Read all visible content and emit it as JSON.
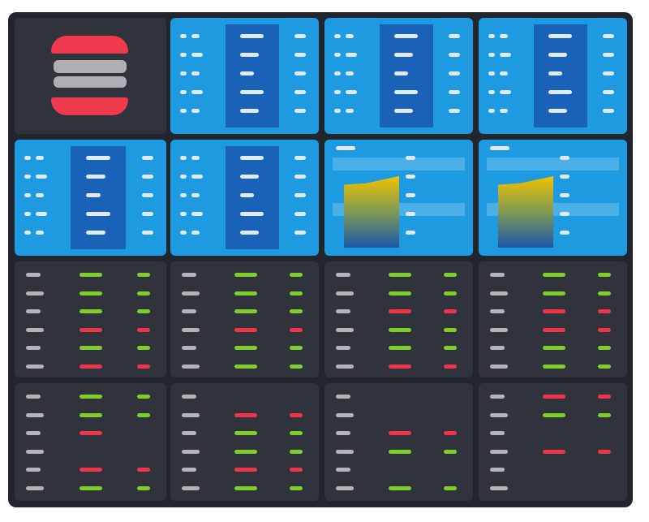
{
  "colors": {
    "frame": "#23252c",
    "dark_panel": "#30333c",
    "blue_panel": "#1d9ae0",
    "blue_band": "#1a62b8",
    "text_white": "#dfeaf6",
    "text_gray": "#b6b3b8",
    "up_green": "#7fcf2a",
    "down_red": "#f0344a",
    "logo_red": "#ee3a4c",
    "logo_gray": "#b0aeb2"
  },
  "grid": [
    [
      {
        "type": "logo"
      },
      {
        "type": "blue_table"
      },
      {
        "type": "blue_table"
      },
      {
        "type": "blue_table"
      }
    ],
    [
      {
        "type": "blue_table"
      },
      {
        "type": "blue_table"
      },
      {
        "type": "blue_chart"
      },
      {
        "type": "blue_chart"
      }
    ],
    [
      {
        "type": "dark_table",
        "rows": [
          [
            "g",
            "g"
          ],
          [
            "g",
            "g"
          ],
          [
            "g",
            "g"
          ],
          [
            "r",
            "r"
          ],
          [
            "g",
            "g"
          ],
          [
            "r",
            "r"
          ]
        ]
      },
      {
        "type": "dark_table",
        "rows": [
          [
            "g",
            "g"
          ],
          [
            "g",
            "g"
          ],
          [
            "g",
            "g"
          ],
          [
            "r",
            "r"
          ],
          [
            "g",
            "g"
          ],
          [
            "g",
            "g"
          ]
        ]
      },
      {
        "type": "dark_table",
        "rows": [
          [
            "g",
            "g"
          ],
          [
            "g",
            "g"
          ],
          [
            "r",
            "r"
          ],
          [
            "g",
            "g"
          ],
          [
            "g",
            "g"
          ],
          [
            "r",
            "r"
          ]
        ]
      },
      {
        "type": "dark_table",
        "rows": [
          [
            "g",
            "g"
          ],
          [
            "g",
            "g"
          ],
          [
            "r",
            "r"
          ],
          [
            "r",
            "r"
          ],
          [
            "g",
            "g"
          ],
          [
            "g",
            "g"
          ]
        ]
      }
    ],
    [
      {
        "type": "dark_table",
        "rows": [
          [
            "g",
            "g"
          ],
          [
            "g",
            "g"
          ],
          [
            "r",
            ""
          ],
          [
            "",
            ""
          ],
          [
            "r",
            "r"
          ],
          [
            "g",
            "g"
          ]
        ]
      },
      {
        "type": "dark_table",
        "rows": [
          [
            "",
            ""
          ],
          [
            "r",
            "r"
          ],
          [
            "g",
            "g"
          ],
          [
            "g",
            "g"
          ],
          [
            "r",
            "r"
          ],
          [
            "g",
            "g"
          ]
        ]
      },
      {
        "type": "dark_table",
        "rows": [
          [
            "",
            ""
          ],
          [
            "",
            ""
          ],
          [
            "r",
            "r"
          ],
          [
            "g",
            "g"
          ],
          [
            "",
            ""
          ],
          [
            "g",
            "g"
          ]
        ]
      },
      {
        "type": "dark_table",
        "rows": [
          [
            "r",
            "r"
          ],
          [
            "g",
            "g"
          ],
          [
            "",
            ""
          ],
          [
            "r",
            "r"
          ],
          [
            "",
            ""
          ],
          [
            "",
            ""
          ]
        ]
      }
    ]
  ]
}
